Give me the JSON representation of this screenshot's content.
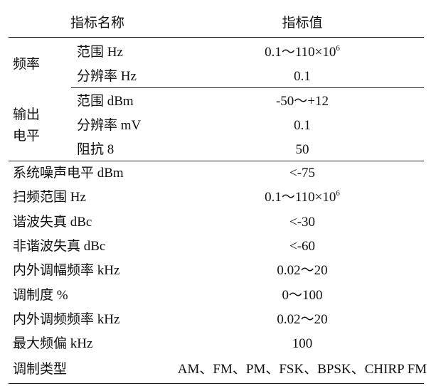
{
  "table": {
    "header": [
      "指标名称",
      "指标值"
    ],
    "groups": [
      {
        "label": [
          "频率"
        ],
        "rows": [
          {
            "label": "范围 Hz",
            "value": "0.1～110×10",
            "sup": "6"
          },
          {
            "label": "分辨率 Hz",
            "value": "0.1"
          }
        ]
      },
      {
        "label": [
          "输出",
          "电平"
        ],
        "rows": [
          {
            "label": "范围 dBm",
            "value": "-50～+12"
          },
          {
            "label": "分辨率 mV",
            "value": "0.1"
          },
          {
            "label": "阻抗 8",
            "value": "50"
          }
        ]
      }
    ],
    "rows": [
      {
        "label": "系统噪声电平 dBm",
        "value": "<-75"
      },
      {
        "label": "扫频范围 Hz",
        "value": "0.1～110×10",
        "sup": "6"
      },
      {
        "label": "谐波失真 dBc",
        "value": "<-30"
      },
      {
        "label": "非谐波失真 dBc",
        "value": "<-60"
      },
      {
        "label": "内外调幅频率 kHz",
        "value": "0.02～20"
      },
      {
        "label": "调制度 %",
        "value": "0～100"
      },
      {
        "label": "内外调频频率 kHz",
        "value": "0.02～20"
      },
      {
        "label": "最大频偏 kHz",
        "value": "100"
      },
      {
        "label": "调制类型",
        "value": "AM、FM、PM、FSK、BPSK、CHIRP FM"
      }
    ]
  }
}
